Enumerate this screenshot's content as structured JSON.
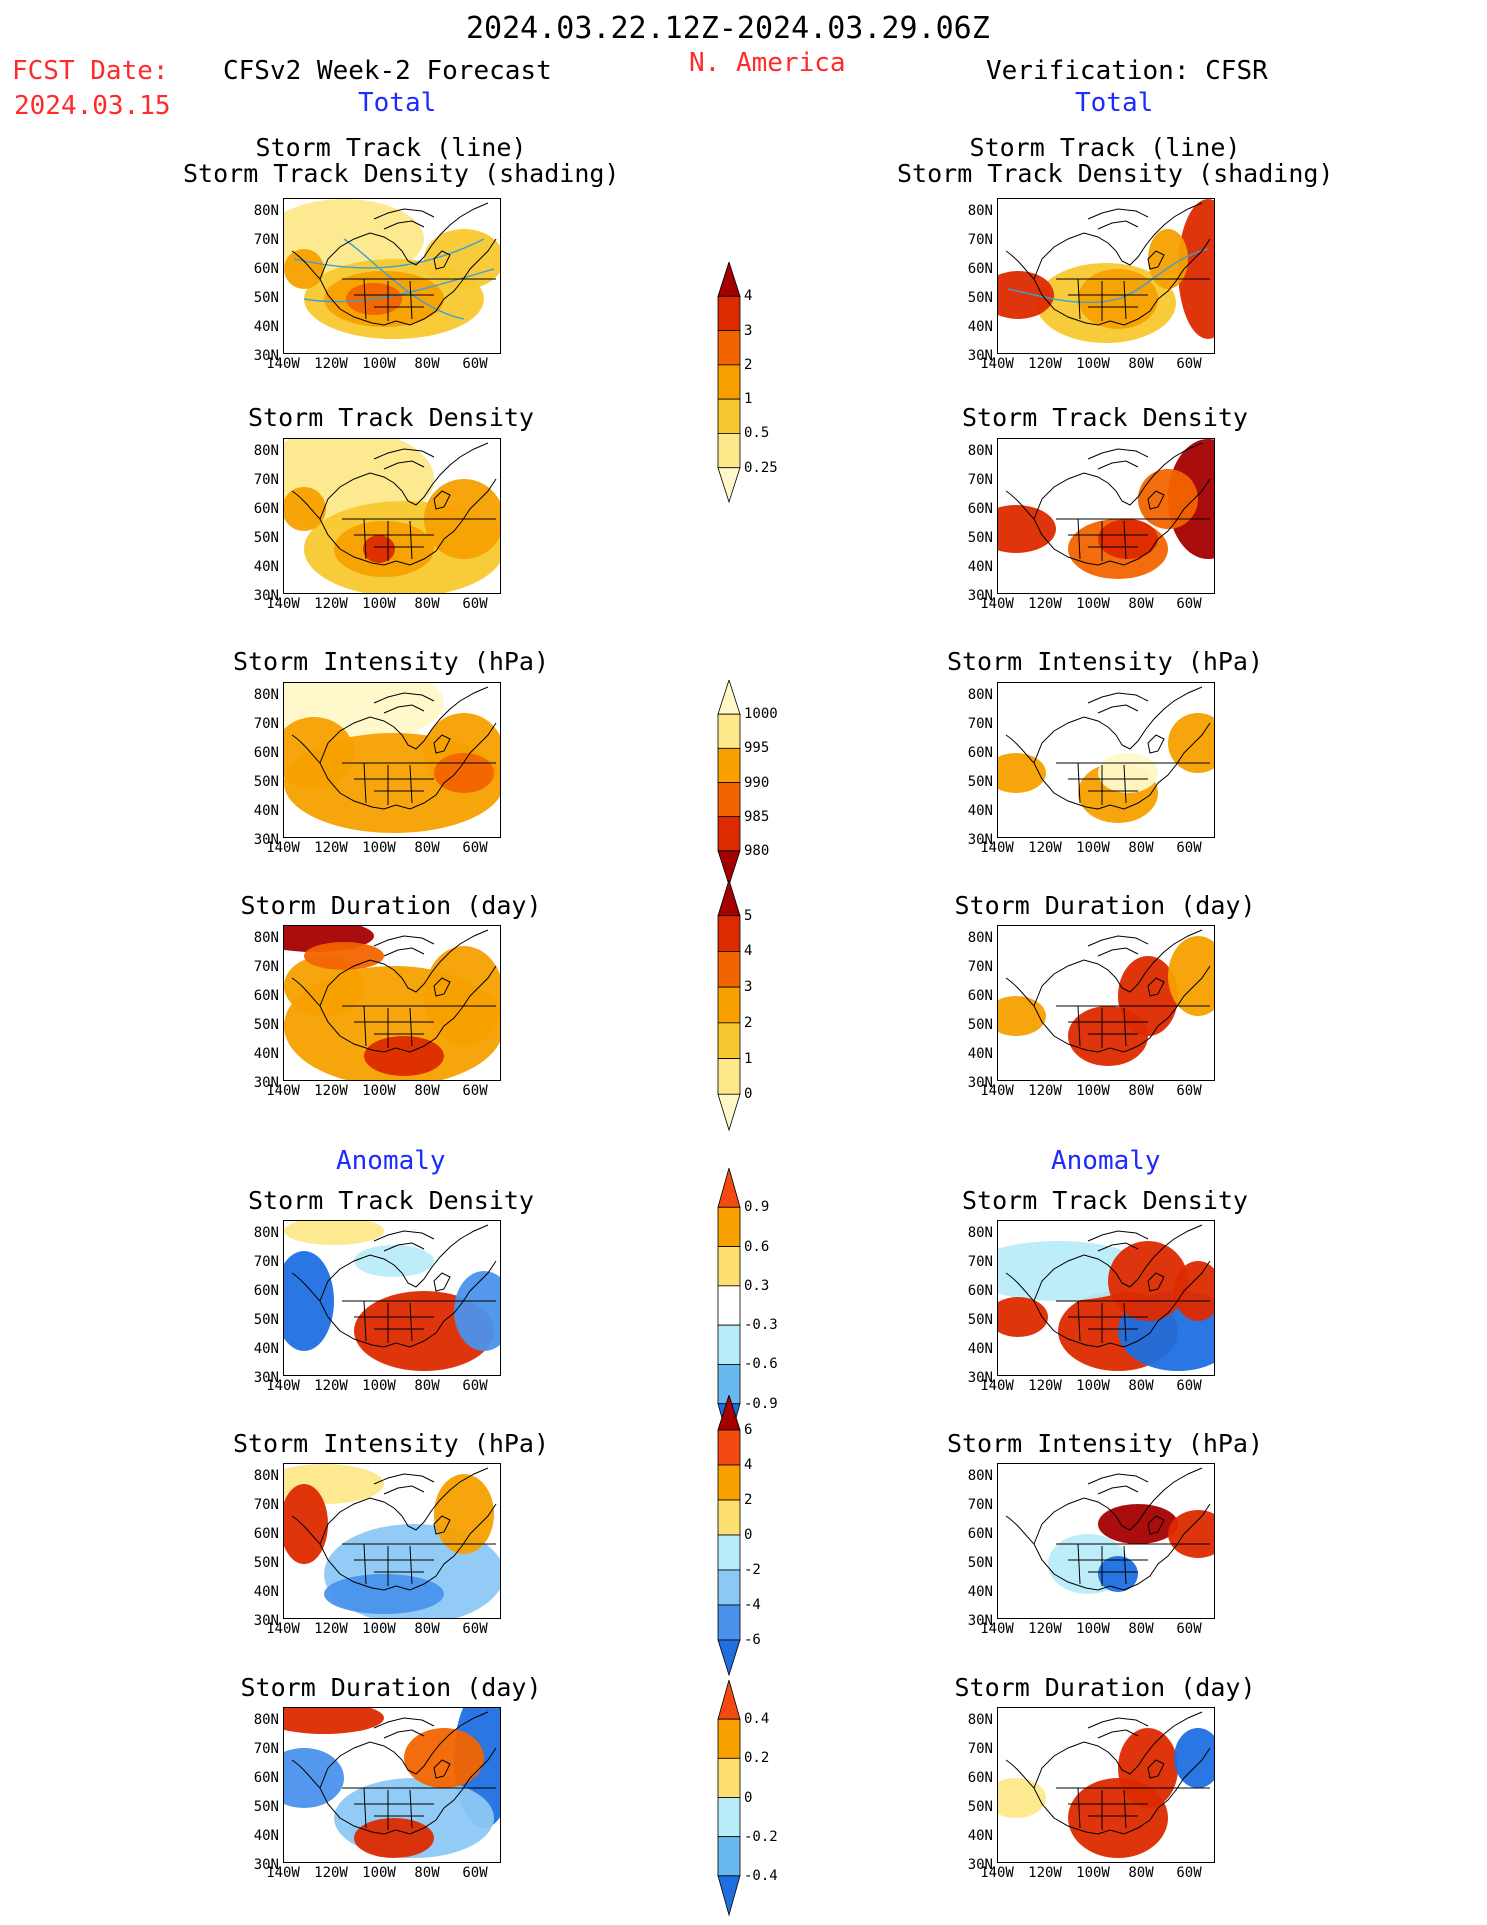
{
  "header": {
    "period": "2024.03.22.12Z-2024.03.29.06Z",
    "fcst_label": "FCST Date:",
    "fcst_date": "2024.03.15",
    "left_title": "CFSv2 Week-2 Forecast",
    "center_title": "N. America",
    "right_title": "Verification: CFSR",
    "total_label": "Total",
    "anomaly_label": "Anomaly"
  },
  "axes": {
    "lat_ticks": [
      "80N",
      "70N",
      "60N",
      "50N",
      "40N",
      "30N"
    ],
    "lon_ticks": [
      "140W",
      "120W",
      "100W",
      "80W",
      "60W"
    ]
  },
  "panels": [
    {
      "title_line1": "Storm Track (line)",
      "title_line2": "Storm Track Density (shading)"
    },
    {
      "title_line1": "Storm Track Density",
      "title_line2": ""
    },
    {
      "title_line1": "Storm Intensity (hPa)",
      "title_line2": ""
    },
    {
      "title_line1": "Storm Duration (day)",
      "title_line2": ""
    },
    {
      "title_line1": "Storm Track Density",
      "title_line2": ""
    },
    {
      "title_line1": "Storm Intensity (hPa)",
      "title_line2": ""
    },
    {
      "title_line1": "Storm Duration (day)",
      "title_line2": ""
    }
  ],
  "colorbars": [
    {
      "labels": [
        "4",
        "3",
        "2",
        "1",
        "0.5",
        "0.25"
      ],
      "colors": [
        "#a50000",
        "#dd2a00",
        "#f26400",
        "#f7a000",
        "#f8c830",
        "#fde88a",
        "#fff8c8"
      ]
    },
    {
      "labels": [
        "1000",
        "995",
        "990",
        "985",
        "980"
      ],
      "colors": [
        "#fff8c8",
        "#fde88a",
        "#f7a000",
        "#f26400",
        "#dd2a00",
        "#a50000"
      ]
    },
    {
      "labels": [
        "5",
        "4",
        "3",
        "2",
        "1",
        "0"
      ],
      "colors": [
        "#a50000",
        "#dd2a00",
        "#f26400",
        "#f7a000",
        "#f8c830",
        "#fde88a",
        "#fff8c8"
      ]
    },
    {
      "labels": [
        "0.9",
        "0.6",
        "0.3",
        "-0.3",
        "-0.6",
        "-0.9"
      ],
      "colors": [
        "#f24a10",
        "#f7a000",
        "#fde070",
        "#ffffff",
        "#b8ecf8",
        "#6ab8f0",
        "#1f6fe0"
      ]
    },
    {
      "labels": [
        "6",
        "4",
        "2",
        "0",
        "-2",
        "-4",
        "-6"
      ],
      "colors": [
        "#a50000",
        "#f24a10",
        "#f7a000",
        "#fde070",
        "#b8ecf8",
        "#8cc8f4",
        "#4a92ec",
        "#1f6fe0"
      ]
    },
    {
      "labels": [
        "0.4",
        "0.2",
        "0",
        "-0.2",
        "-0.4"
      ],
      "colors": [
        "#f24a10",
        "#f7a000",
        "#fde070",
        "#b8ecf8",
        "#6ab8f0",
        "#1f6fe0"
      ]
    }
  ]
}
